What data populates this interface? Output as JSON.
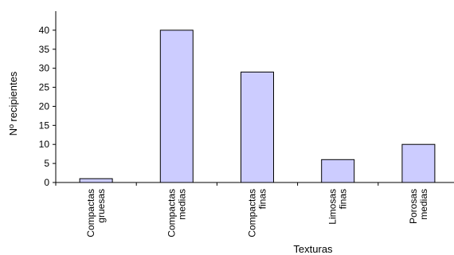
{
  "chart_data": {
    "type": "bar",
    "title": "",
    "xlabel": "Texturas",
    "ylabel": "Nº recipientes",
    "ylim": [
      0,
      45
    ],
    "yticks": [
      0,
      5,
      10,
      15,
      20,
      25,
      30,
      35,
      40
    ],
    "grid": false,
    "legend": "none",
    "categories": [
      [
        "Compactas",
        "gruesas"
      ],
      [
        "Compactas",
        "medias"
      ],
      [
        "Compactas",
        "finas"
      ],
      [
        "Limosas",
        "finas"
      ],
      [
        "Porosas",
        "medias"
      ]
    ],
    "values": [
      1,
      40,
      29,
      6,
      10
    ],
    "bar_color": "#ccccff",
    "bar_edge_color": "#000000"
  }
}
